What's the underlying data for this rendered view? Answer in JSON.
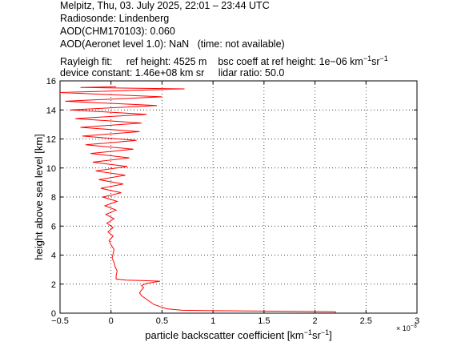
{
  "header": {
    "line1": "Melpitz, Thu, 03. July 2025, 22:01 – 23:44 UTC",
    "line2": "Radiosonde: Lindenberg",
    "line3": "AOD(CHM170103): 0.060",
    "line4_prefix": "AOD(Aeronet level 1.0): NaN",
    "line4_suffix": "(time: not available)",
    "rayleigh_label": "Rayleigh fit:",
    "ref_height": "ref height: 4525 m",
    "bsc_coeff": "bsc coeff at ref height: 1e−06 km",
    "bsc_unit_exp1": "−1",
    "bsc_unit_sr": "sr",
    "bsc_unit_exp2": "−1",
    "device_constant": "device constant: 1.46e+08 km sr",
    "lidar_ratio": "lidar ratio: 50.0"
  },
  "chart_data": {
    "type": "line",
    "xlabel": "particle backscatter coefficient [km⁻¹sr⁻¹]",
    "xlabel_parts": [
      "particle backscatter coefficient [km",
      "−1",
      "sr",
      "−1",
      "]"
    ],
    "ylabel": "height above sea level [km]",
    "x_multiplier": "× 10",
    "x_multiplier_exp": "−3",
    "xlim": [
      -0.5,
      3
    ],
    "ylim": [
      0,
      16
    ],
    "xticks": [
      "−0.5",
      "0",
      "0.5",
      "1",
      "1.5",
      "2",
      "2.5",
      "3"
    ],
    "xtick_values": [
      -0.5,
      0,
      0.5,
      1,
      1.5,
      2,
      2.5,
      3
    ],
    "yticks": [
      "0",
      "2",
      "4",
      "6",
      "8",
      "10",
      "12",
      "14",
      "16"
    ],
    "ytick_values": [
      0,
      2,
      4,
      6,
      8,
      10,
      12,
      14,
      16
    ],
    "grid": true,
    "series": [
      {
        "color": "#ff0000",
        "points": [
          [
            2.2,
            0.02
          ],
          [
            2.2,
            0.1
          ],
          [
            1.6,
            0.14
          ],
          [
            1.0,
            0.17
          ],
          [
            0.7,
            0.2
          ],
          [
            0.55,
            0.3
          ],
          [
            0.48,
            0.45
          ],
          [
            0.42,
            0.6
          ],
          [
            0.38,
            0.8
          ],
          [
            0.34,
            1.0
          ],
          [
            0.3,
            1.2
          ],
          [
            0.28,
            1.4
          ],
          [
            0.3,
            1.6
          ],
          [
            0.32,
            1.75
          ],
          [
            0.3,
            1.9
          ],
          [
            0.35,
            2.05
          ],
          [
            0.48,
            2.2
          ],
          [
            0.3,
            2.25
          ],
          [
            0.15,
            2.28
          ],
          [
            0.05,
            2.35
          ],
          [
            0.05,
            2.6
          ],
          [
            0.06,
            2.9
          ],
          [
            0.04,
            3.2
          ],
          [
            0.03,
            3.5
          ],
          [
            0.01,
            3.8
          ],
          [
            0.02,
            4.1
          ],
          [
            0.03,
            4.4
          ],
          [
            0.0,
            4.7
          ],
          [
            -0.02,
            5.0
          ],
          [
            0.02,
            5.3
          ],
          [
            -0.03,
            5.6
          ],
          [
            0.02,
            5.9
          ],
          [
            -0.04,
            6.2
          ],
          [
            0.03,
            6.5
          ],
          [
            -0.05,
            6.8
          ],
          [
            0.05,
            7.1
          ],
          [
            -0.06,
            7.4
          ],
          [
            0.06,
            7.7
          ],
          [
            -0.08,
            8.0
          ],
          [
            0.1,
            8.3
          ],
          [
            -0.1,
            8.6
          ],
          [
            0.12,
            8.9
          ],
          [
            -0.12,
            9.2
          ],
          [
            0.14,
            9.5
          ],
          [
            -0.15,
            9.8
          ],
          [
            0.16,
            10.1
          ],
          [
            -0.18,
            10.4
          ],
          [
            0.18,
            10.7
          ],
          [
            -0.2,
            11.0
          ],
          [
            0.22,
            11.3
          ],
          [
            -0.25,
            11.6
          ],
          [
            0.25,
            11.9
          ],
          [
            -0.28,
            12.2
          ],
          [
            0.28,
            12.5
          ],
          [
            -0.3,
            12.8
          ],
          [
            0.3,
            13.1
          ],
          [
            -0.35,
            13.4
          ],
          [
            0.35,
            13.7
          ],
          [
            -0.4,
            14.0
          ],
          [
            0.45,
            14.3
          ],
          [
            -0.45,
            14.6
          ],
          [
            0.5,
            14.9
          ],
          [
            -0.5,
            15.2
          ],
          [
            0.72,
            15.45
          ],
          [
            -0.3,
            15.55
          ],
          [
            0.05,
            15.6
          ]
        ]
      }
    ]
  }
}
